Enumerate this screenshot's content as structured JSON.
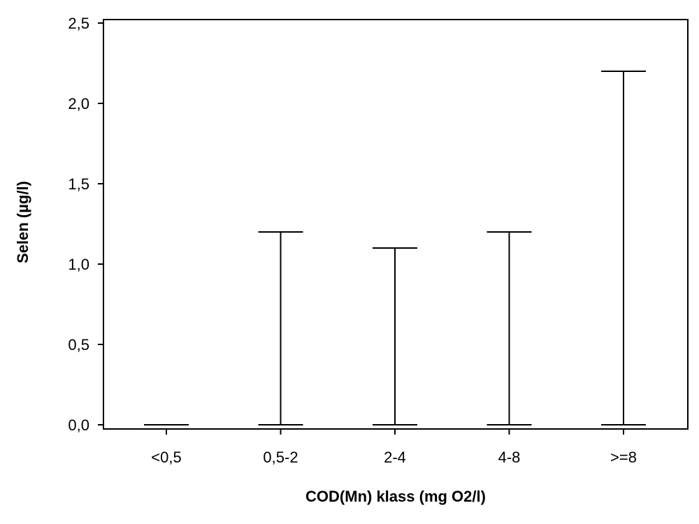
{
  "chart_data": {
    "type": "range",
    "xlabel": "COD(Mn) klass (mg O2/l)",
    "ylabel": "Selen (µg/l)",
    "ylim": [
      0,
      2.5
    ],
    "yticks": [
      0.0,
      0.5,
      1.0,
      1.5,
      2.0,
      2.5
    ],
    "ytick_labels": [
      "0,0",
      "0,5",
      "1,0",
      "1,5",
      "2,0",
      "2,5"
    ],
    "categories": [
      "<0,5",
      "0,5-2",
      "2-4",
      "4-8",
      ">=8"
    ],
    "series": [
      {
        "min": [
          0.0,
          0.0,
          0.0,
          0.0,
          0.0
        ],
        "max": [
          0.0,
          1.2,
          1.1,
          1.2,
          2.2
        ]
      }
    ],
    "grid": false,
    "legend": "none"
  }
}
